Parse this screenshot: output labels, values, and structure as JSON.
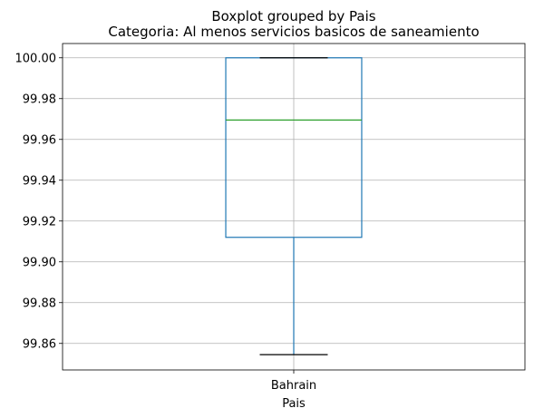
{
  "chart_data": {
    "type": "boxplot",
    "title": "Boxplot grouped by Pais",
    "subtitle": "Categoria: Al menos servicios basicos de saneamiento",
    "xlabel": "Pais",
    "ylabel": "",
    "categories": [
      "Bahrain"
    ],
    "boxes": [
      {
        "category": "Bahrain",
        "whisker_low": 99.8545,
        "q1": 99.912,
        "median": 99.9695,
        "q3": 100.0,
        "whisker_high": 100.0
      }
    ],
    "ylim": [
      99.847,
      100.007
    ],
    "yticks": [
      99.86,
      99.88,
      99.9,
      99.92,
      99.94,
      99.96,
      99.98,
      100.0
    ],
    "ytick_labels": [
      "99.86",
      "99.88",
      "99.90",
      "99.92",
      "99.94",
      "99.96",
      "99.98",
      "100.00"
    ],
    "grid": true,
    "colors": {
      "box": "#1f77b4",
      "median": "#2ca02c",
      "caps": "#000000",
      "grid": "#b0b0b0"
    }
  }
}
